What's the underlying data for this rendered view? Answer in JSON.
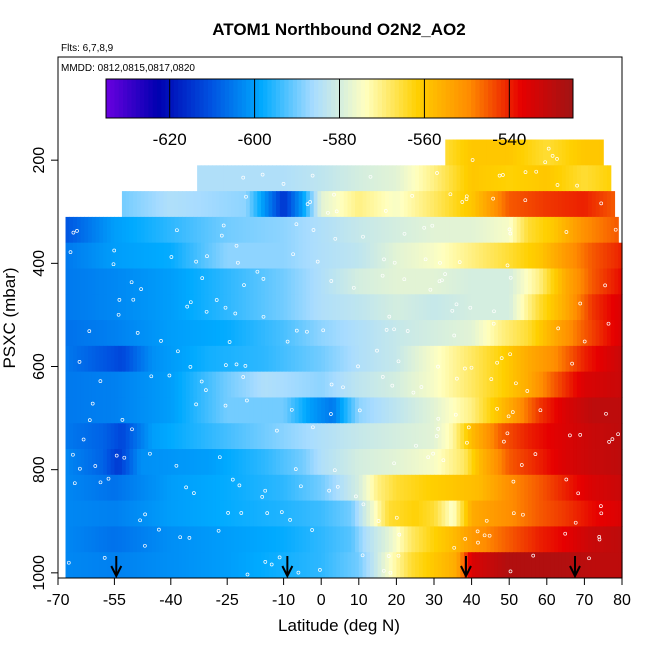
{
  "chart_data": {
    "type": "heatmap",
    "title": "ATOM1 Northbound O2N2_AO2",
    "subtitle_lines": [
      "Flts: 6,7,8,9",
      "MMDD: 0812,0815,0817,0820"
    ],
    "xlabel": "Latitude (deg N)",
    "ylabel": "PSXC (mbar)",
    "xlim": [
      -70,
      80
    ],
    "ylim": [
      1010,
      0
    ],
    "x_ticks": [
      -70,
      -55,
      -40,
      -25,
      -10,
      0,
      10,
      20,
      30,
      40,
      50,
      60,
      70,
      80
    ],
    "x_tick_labels": [
      "-70",
      "-55",
      "-40",
      "-25",
      "-10",
      "0",
      "10",
      "20",
      "30",
      "40",
      "50",
      "60",
      "70",
      "80"
    ],
    "y_ticks": [
      200,
      400,
      600,
      800,
      1000
    ],
    "y_tick_labels": [
      "200",
      "400",
      "600",
      "800",
      "1000"
    ],
    "colorbar": {
      "range": [
        -635,
        -525
      ],
      "ticks": [
        -620,
        -600,
        -580,
        -560,
        -540
      ],
      "tick_labels": [
        "-620",
        "-600",
        "-580",
        "-560",
        "-540"
      ],
      "colors": [
        "#6a00e0",
        "#0000b0",
        "#0050e0",
        "#00aaff",
        "#a8dcff",
        "#ffffc0",
        "#ffd000",
        "#ff8c00",
        "#e60000",
        "#a01414"
      ]
    },
    "grid": false,
    "arrows_lat": [
      -54.5,
      -9,
      38.5,
      67.5
    ],
    "levels": [
      {
        "p": 185,
        "lat_min": 33,
        "lat_max": 75,
        "keys": [
          [
            33,
            -565
          ],
          [
            40,
            -560
          ],
          [
            50,
            -560
          ],
          [
            60,
            -565
          ],
          [
            70,
            -560
          ],
          [
            75,
            -560
          ]
        ]
      },
      {
        "p": 235,
        "lat_min": -33,
        "lat_max": 77,
        "keys": [
          [
            -33,
            -585
          ],
          [
            -20,
            -585
          ],
          [
            -10,
            -585
          ],
          [
            0,
            -583
          ],
          [
            10,
            -580
          ],
          [
            20,
            -578
          ],
          [
            30,
            -570
          ],
          [
            40,
            -560
          ],
          [
            50,
            -562
          ],
          [
            60,
            -560
          ],
          [
            70,
            -565
          ],
          [
            77,
            -562
          ]
        ]
      },
      {
        "p": 285,
        "lat_min": -53,
        "lat_max": 78,
        "keys": [
          [
            -53,
            -590
          ],
          [
            -40,
            -585
          ],
          [
            -20,
            -588
          ],
          [
            -10,
            -615
          ],
          [
            -5,
            -600
          ],
          [
            0,
            -578
          ],
          [
            10,
            -570
          ],
          [
            20,
            -575
          ],
          [
            30,
            -568
          ],
          [
            40,
            -560
          ],
          [
            50,
            -545
          ],
          [
            60,
            -542
          ],
          [
            70,
            -540
          ],
          [
            78,
            -545
          ]
        ]
      },
      {
        "p": 335,
        "lat_min": -68,
        "lat_max": 79,
        "keys": [
          [
            -68,
            -610
          ],
          [
            -55,
            -600
          ],
          [
            -40,
            -595
          ],
          [
            -25,
            -590
          ],
          [
            -10,
            -588
          ],
          [
            0,
            -585
          ],
          [
            10,
            -582
          ],
          [
            20,
            -580
          ],
          [
            30,
            -578
          ],
          [
            40,
            -578
          ],
          [
            50,
            -575
          ],
          [
            55,
            -565
          ],
          [
            62,
            -560
          ],
          [
            70,
            -550
          ],
          [
            79,
            -545
          ]
        ]
      },
      {
        "p": 385,
        "lat_min": -68,
        "lat_max": 80,
        "keys": [
          [
            -68,
            -605
          ],
          [
            -55,
            -600
          ],
          [
            -40,
            -598
          ],
          [
            -25,
            -588
          ],
          [
            -10,
            -588
          ],
          [
            0,
            -585
          ],
          [
            10,
            -583
          ],
          [
            20,
            -578
          ],
          [
            30,
            -575
          ],
          [
            40,
            -570
          ],
          [
            50,
            -565
          ],
          [
            58,
            -560
          ],
          [
            65,
            -552
          ],
          [
            72,
            -545
          ],
          [
            80,
            -540
          ]
        ]
      },
      {
        "p": 435,
        "lat_min": -68,
        "lat_max": 80,
        "keys": [
          [
            -68,
            -605
          ],
          [
            -55,
            -603
          ],
          [
            -40,
            -600
          ],
          [
            -25,
            -595
          ],
          [
            -10,
            -590
          ],
          [
            0,
            -585
          ],
          [
            10,
            -580
          ],
          [
            20,
            -578
          ],
          [
            30,
            -578
          ],
          [
            40,
            -580
          ],
          [
            50,
            -580
          ],
          [
            58,
            -570
          ],
          [
            65,
            -555
          ],
          [
            72,
            -545
          ],
          [
            80,
            -538
          ]
        ]
      },
      {
        "p": 485,
        "lat_min": -68,
        "lat_max": 80,
        "keys": [
          [
            -68,
            -605
          ],
          [
            -55,
            -603
          ],
          [
            -40,
            -600
          ],
          [
            -25,
            -595
          ],
          [
            -10,
            -590
          ],
          [
            0,
            -585
          ],
          [
            10,
            -583
          ],
          [
            20,
            -580
          ],
          [
            30,
            -582
          ],
          [
            40,
            -580
          ],
          [
            50,
            -580
          ],
          [
            58,
            -565
          ],
          [
            65,
            -555
          ],
          [
            72,
            -542
          ],
          [
            80,
            -535
          ]
        ]
      },
      {
        "p": 535,
        "lat_min": -68,
        "lat_max": 80,
        "keys": [
          [
            -68,
            -606
          ],
          [
            -55,
            -604
          ],
          [
            -40,
            -600
          ],
          [
            -25,
            -598
          ],
          [
            -10,
            -593
          ],
          [
            0,
            -588
          ],
          [
            10,
            -585
          ],
          [
            20,
            -582
          ],
          [
            30,
            -580
          ],
          [
            40,
            -578
          ],
          [
            48,
            -570
          ],
          [
            55,
            -565
          ],
          [
            62,
            -555
          ],
          [
            70,
            -545
          ],
          [
            80,
            -535
          ]
        ]
      },
      {
        "p": 585,
        "lat_min": -68,
        "lat_max": 80,
        "keys": [
          [
            -68,
            -605
          ],
          [
            -57,
            -610
          ],
          [
            -53,
            -612
          ],
          [
            -45,
            -602
          ],
          [
            -30,
            -597
          ],
          [
            -15,
            -595
          ],
          [
            0,
            -590
          ],
          [
            10,
            -585
          ],
          [
            20,
            -582
          ],
          [
            30,
            -575
          ],
          [
            40,
            -568
          ],
          [
            48,
            -562
          ],
          [
            55,
            -555
          ],
          [
            62,
            -550
          ],
          [
            70,
            -540
          ],
          [
            80,
            -532
          ]
        ]
      },
      {
        "p": 635,
        "lat_min": -68,
        "lat_max": 80,
        "keys": [
          [
            -68,
            -605
          ],
          [
            -55,
            -604
          ],
          [
            -40,
            -600
          ],
          [
            -25,
            -590
          ],
          [
            -15,
            -585
          ],
          [
            0,
            -588
          ],
          [
            10,
            -583
          ],
          [
            20,
            -580
          ],
          [
            30,
            -575
          ],
          [
            40,
            -568
          ],
          [
            48,
            -562
          ],
          [
            55,
            -555
          ],
          [
            62,
            -545
          ],
          [
            70,
            -535
          ],
          [
            80,
            -532
          ]
        ]
      },
      {
        "p": 685,
        "lat_min": -68,
        "lat_max": 80,
        "keys": [
          [
            -68,
            -605
          ],
          [
            -55,
            -604
          ],
          [
            -40,
            -600
          ],
          [
            -25,
            -590
          ],
          [
            -10,
            -590
          ],
          [
            -3,
            -600
          ],
          [
            3,
            -605
          ],
          [
            10,
            -588
          ],
          [
            20,
            -583
          ],
          [
            30,
            -578
          ],
          [
            40,
            -570
          ],
          [
            50,
            -555
          ],
          [
            58,
            -542
          ],
          [
            65,
            -535
          ],
          [
            72,
            -530
          ],
          [
            80,
            -530
          ]
        ]
      },
      {
        "p": 735,
        "lat_min": -68,
        "lat_max": 80,
        "keys": [
          [
            -68,
            -605
          ],
          [
            -58,
            -608
          ],
          [
            -53,
            -612
          ],
          [
            -45,
            -600
          ],
          [
            -30,
            -595
          ],
          [
            -15,
            -590
          ],
          [
            0,
            -585
          ],
          [
            10,
            -582
          ],
          [
            20,
            -580
          ],
          [
            30,
            -578
          ],
          [
            35,
            -572
          ],
          [
            40,
            -558
          ],
          [
            48,
            -545
          ],
          [
            55,
            -540
          ],
          [
            65,
            -535
          ],
          [
            72,
            -532
          ],
          [
            80,
            -530
          ]
        ]
      },
      {
        "p": 785,
        "lat_min": -68,
        "lat_max": 80,
        "keys": [
          [
            -68,
            -603
          ],
          [
            -58,
            -608
          ],
          [
            -54,
            -614
          ],
          [
            -48,
            -602
          ],
          [
            -30,
            -600
          ],
          [
            -15,
            -595
          ],
          [
            -5,
            -590
          ],
          [
            0,
            -585
          ],
          [
            10,
            -580
          ],
          [
            20,
            -578
          ],
          [
            30,
            -575
          ],
          [
            38,
            -568
          ],
          [
            42,
            -558
          ],
          [
            50,
            -545
          ],
          [
            58,
            -540
          ],
          [
            65,
            -535
          ],
          [
            72,
            -532
          ],
          [
            80,
            -530
          ]
        ]
      },
      {
        "p": 835,
        "lat_min": -68,
        "lat_max": 80,
        "keys": [
          [
            -68,
            -603
          ],
          [
            -55,
            -606
          ],
          [
            -40,
            -600
          ],
          [
            -25,
            -598
          ],
          [
            -10,
            -595
          ],
          [
            0,
            -590
          ],
          [
            5,
            -585
          ],
          [
            10,
            -580
          ],
          [
            15,
            -570
          ],
          [
            20,
            -565
          ],
          [
            28,
            -562
          ],
          [
            35,
            -560
          ],
          [
            42,
            -558
          ],
          [
            50,
            -550
          ],
          [
            58,
            -545
          ],
          [
            65,
            -540
          ],
          [
            72,
            -535
          ],
          [
            80,
            -532
          ]
        ]
      },
      {
        "p": 885,
        "lat_min": -68,
        "lat_max": 80,
        "keys": [
          [
            -68,
            -603
          ],
          [
            -55,
            -604
          ],
          [
            -40,
            -600
          ],
          [
            -25,
            -598
          ],
          [
            -10,
            -596
          ],
          [
            0,
            -594
          ],
          [
            8,
            -590
          ],
          [
            12,
            -580
          ],
          [
            18,
            -565
          ],
          [
            25,
            -562
          ],
          [
            30,
            -565
          ],
          [
            35,
            -575
          ],
          [
            40,
            -555
          ],
          [
            50,
            -550
          ],
          [
            58,
            -545
          ],
          [
            65,
            -542
          ],
          [
            72,
            -538
          ],
          [
            80,
            -535
          ]
        ]
      },
      {
        "p": 935,
        "lat_min": -68,
        "lat_max": 80,
        "keys": [
          [
            -68,
            -603
          ],
          [
            -55,
            -606
          ],
          [
            -40,
            -602
          ],
          [
            -25,
            -600
          ],
          [
            -10,
            -598
          ],
          [
            0,
            -595
          ],
          [
            8,
            -592
          ],
          [
            12,
            -585
          ],
          [
            18,
            -578
          ],
          [
            24,
            -568
          ],
          [
            30,
            -562
          ],
          [
            35,
            -558
          ],
          [
            40,
            -552
          ],
          [
            50,
            -545
          ],
          [
            58,
            -540
          ],
          [
            65,
            -537
          ],
          [
            72,
            -532
          ],
          [
            80,
            -530
          ]
        ]
      },
      {
        "p": 985,
        "lat_min": -68,
        "lat_max": 80,
        "keys": [
          [
            -68,
            -603
          ],
          [
            -55,
            -604
          ],
          [
            -40,
            -602
          ],
          [
            -25,
            -600
          ],
          [
            -10,
            -597
          ],
          [
            0,
            -595
          ],
          [
            10,
            -590
          ],
          [
            14,
            -583
          ],
          [
            18,
            -575
          ],
          [
            24,
            -565
          ],
          [
            30,
            -560
          ],
          [
            36,
            -555
          ],
          [
            40,
            -535
          ],
          [
            50,
            -528
          ],
          [
            58,
            -528
          ],
          [
            65,
            -528
          ],
          [
            72,
            -530
          ],
          [
            80,
            -530
          ]
        ]
      }
    ]
  }
}
